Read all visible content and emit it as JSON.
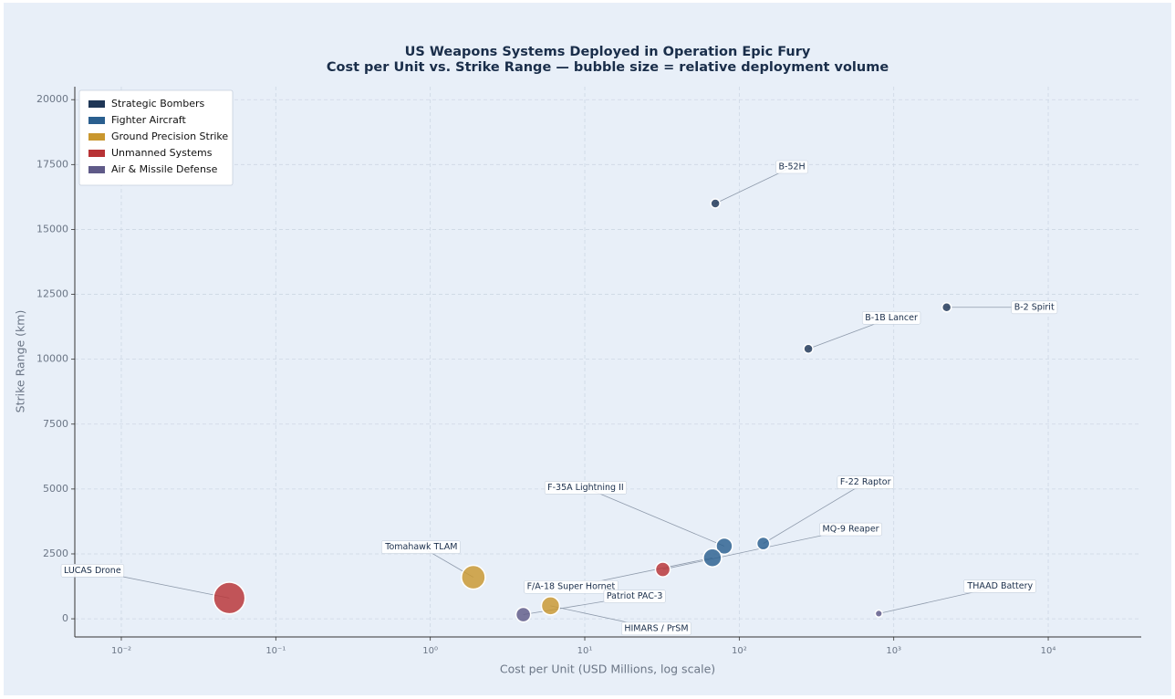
{
  "chart_data": {
    "type": "scatter",
    "title": "US Weapons Systems Deployed in Operation Epic Fury",
    "subtitle": "Cost per Unit vs. Strike Range  —  bubble size = relative deployment volume",
    "x_label": "Cost per Unit (USD Millions, log scale)",
    "y_label": "Strike Range (km)",
    "x_scale": "log",
    "xlim": [
      0.005,
      40000
    ],
    "xticks": [
      {
        "value": 0.01,
        "label": "10⁻²"
      },
      {
        "value": 0.1,
        "label": "10⁻¹"
      },
      {
        "value": 1,
        "label": "10⁰"
      },
      {
        "value": 10,
        "label": "10¹"
      },
      {
        "value": 100,
        "label": "10²"
      },
      {
        "value": 1000,
        "label": "10³"
      },
      {
        "value": 10000,
        "label": "10⁴"
      }
    ],
    "ylim": [
      -700,
      20500
    ],
    "yticks": [
      0,
      2500,
      5000,
      7500,
      10000,
      12500,
      15000,
      17500,
      20000
    ],
    "grid": true,
    "legend": "upper left",
    "series": [
      {
        "name": "Strategic Bombers",
        "color": "#1f3656",
        "points": [
          {
            "label": "B-52H",
            "x": 70,
            "y": 16000,
            "size": 25
          },
          {
            "label": "B-2 Spirit",
            "x": 2200,
            "y": 12000,
            "size": 25
          },
          {
            "label": "B-1B Lancer",
            "x": 280,
            "y": 10400,
            "size": 25
          }
        ]
      },
      {
        "name": "Fighter Aircraft",
        "color": "#2a5f8f",
        "points": [
          {
            "label": "F-22 Raptor",
            "x": 143,
            "y": 2900,
            "size": 50
          },
          {
            "label": "F-35A Lightning II",
            "x": 80,
            "y": 2800,
            "size": 80
          },
          {
            "label": "F/A-18 Super Hornet",
            "x": 67,
            "y": 2350,
            "size": 100
          }
        ]
      },
      {
        "name": "Ground Precision Strike",
        "color": "#c9972e",
        "points": [
          {
            "label": "Tomahawk TLAM",
            "x": 1.9,
            "y": 1600,
            "size": 170
          },
          {
            "label": "HIMARS / PrSM",
            "x": 6,
            "y": 500,
            "size": 100
          }
        ]
      },
      {
        "name": "Unmanned Systems",
        "color": "#b83235",
        "points": [
          {
            "label": "LUCAS Drone",
            "x": 0.05,
            "y": 800,
            "size": 300
          },
          {
            "label": "MQ-9 Reaper",
            "x": 32,
            "y": 1900,
            "size": 65
          }
        ]
      },
      {
        "name": "Air & Missile Defense",
        "color": "#5f5a88",
        "points": [
          {
            "label": "Patriot PAC-3",
            "x": 4,
            "y": 160,
            "size": 65
          },
          {
            "label": "THAAD Battery",
            "x": 800,
            "y": 200,
            "size": 15
          }
        ]
      }
    ]
  }
}
